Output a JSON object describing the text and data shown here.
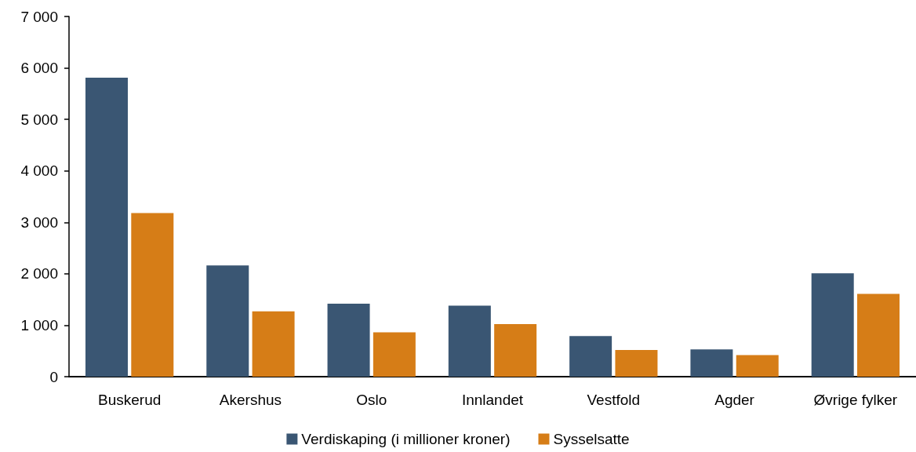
{
  "chart_data": {
    "type": "bar",
    "categories": [
      "Buskerud",
      "Akershus",
      "Oslo",
      "Innlandet",
      "Vestfold",
      "Agder",
      "Øvrige fylker"
    ],
    "series": [
      {
        "name": "Verdiskaping (i millioner kroner)",
        "color": "#3a5673",
        "values": [
          5810,
          2160,
          1420,
          1380,
          790,
          530,
          2010
        ]
      },
      {
        "name": "Sysselsatte",
        "color": "#d67d17",
        "values": [
          3180,
          1270,
          860,
          1020,
          520,
          420,
          1610
        ]
      }
    ],
    "ylim": [
      0,
      7000
    ],
    "yticks": [
      {
        "value": 0,
        "label": "0"
      },
      {
        "value": 1000,
        "label": "1 000"
      },
      {
        "value": 2000,
        "label": "2 000"
      },
      {
        "value": 3000,
        "label": "3 000"
      },
      {
        "value": 4000,
        "label": "4 000"
      },
      {
        "value": 5000,
        "label": "5 000"
      },
      {
        "value": 6000,
        "label": "6 000"
      },
      {
        "value": 7000,
        "label": "7 000"
      }
    ],
    "grid": false,
    "legend": "bottom"
  }
}
